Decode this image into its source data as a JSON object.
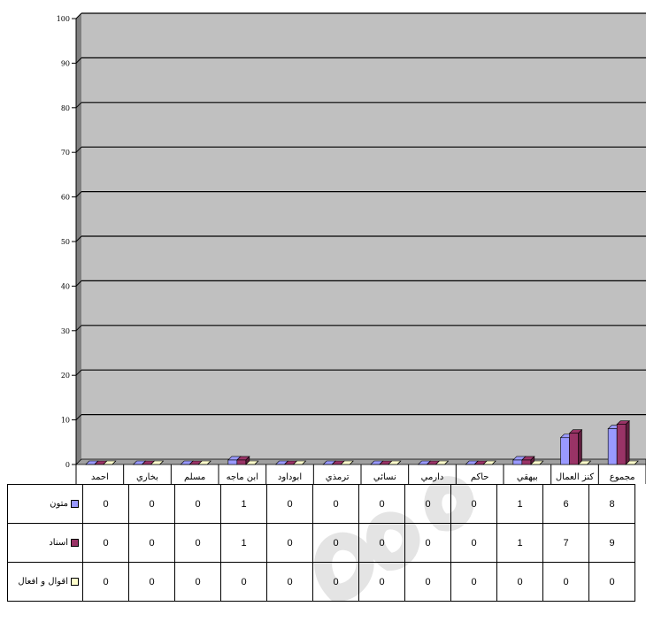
{
  "chart_data": {
    "type": "bar",
    "categories": [
      "احمد",
      "بخاري",
      "مسلم",
      "ابن ماجه",
      "ابوداود",
      "ترمذي",
      "نسائي",
      "دارمي",
      "حاكم",
      "بيهقي",
      "كنز العمال",
      "مجموع"
    ],
    "series": [
      {
        "name": "متون",
        "values": [
          0,
          0,
          0,
          1,
          0,
          0,
          0,
          0,
          0,
          1,
          6,
          8
        ]
      },
      {
        "name": "اسناد",
        "values": [
          0,
          0,
          0,
          1,
          0,
          0,
          0,
          0,
          0,
          1,
          7,
          9
        ]
      },
      {
        "name": "اقوال و افعال",
        "values": [
          0,
          0,
          0,
          0,
          0,
          0,
          0,
          0,
          0,
          0,
          0,
          0
        ]
      }
    ],
    "ylim": [
      0,
      100
    ],
    "yticks": [
      0,
      10,
      20,
      30,
      40,
      50,
      60,
      70,
      80,
      90,
      100
    ],
    "grid": true,
    "legend": "table-below",
    "colors": {
      "series_fill": [
        "#9999ff",
        "#993366",
        "#ffffcc"
      ],
      "series_side": [
        "#5a5acc",
        "#5e1e3d",
        "#c8c88a"
      ],
      "plot_background": "#c0c0c0",
      "wall_side": "#808080"
    }
  }
}
